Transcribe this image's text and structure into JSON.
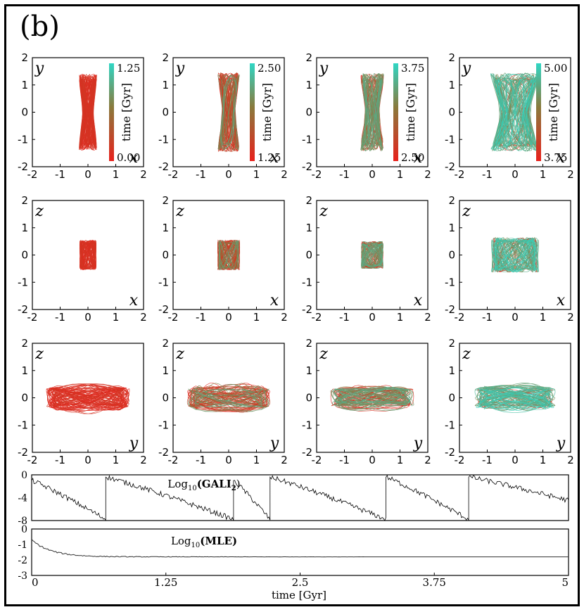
{
  "panel_label": "(b)",
  "colors": {
    "early": "#e8211c",
    "mid": "#8a7a3c",
    "late": "#2fd6c4"
  },
  "chart_data": {
    "type": "orbit-projections-grid",
    "axis_range": [
      -2,
      2
    ],
    "axis_ticks": [
      "-2",
      "-1",
      "0",
      "1",
      "2"
    ],
    "time_units": "Gyr",
    "colorbar_label": "time [Gyr]",
    "columns": [
      {
        "t_start": "0.00",
        "t_end": "1.25",
        "late_frac": 0.0
      },
      {
        "t_start": "1.25",
        "t_end": "2.50",
        "late_frac": 0.25
      },
      {
        "t_start": "2.50",
        "t_end": "3.75",
        "late_frac": 0.55
      },
      {
        "t_start": "3.75",
        "t_end": "5.00",
        "late_frac": 0.85
      }
    ],
    "rows": [
      {
        "projection": "x-y",
        "horizontal": "x",
        "vertical": "y",
        "extent_h": [
          0.35,
          0.4,
          0.45,
          0.9
        ],
        "extent_v": [
          1.4,
          1.45,
          1.45,
          1.45
        ]
      },
      {
        "projection": "x-z",
        "horizontal": "x",
        "vertical": "z",
        "extent_h": [
          0.3,
          0.4,
          0.4,
          0.85
        ],
        "extent_v": [
          0.55,
          0.55,
          0.5,
          0.65
        ]
      },
      {
        "projection": "y-z",
        "horizontal": "y",
        "vertical": "z",
        "extent_h": [
          1.5,
          1.5,
          1.5,
          1.45
        ],
        "extent_v": [
          0.55,
          0.5,
          0.45,
          0.5
        ]
      }
    ],
    "gali2": {
      "title_prefix": "Log",
      "title_sub": "10",
      "title_arg": "(GALI",
      "title_arg_sub": "2",
      "title_close": ")",
      "ylim": [
        -8,
        0
      ],
      "yticks": [
        "0",
        "-4",
        "-8"
      ],
      "reset_times": [
        0.0,
        0.69,
        1.88,
        2.22,
        3.3,
        4.07,
        5.0
      ],
      "start_values": [
        -1.0,
        -0.4,
        -1.0,
        -0.4,
        -0.4,
        -0.4
      ],
      "end_values": [
        -7.8,
        -7.8,
        -7.8,
        -7.8,
        -7.8,
        -4.5
      ]
    },
    "mle": {
      "title_prefix": "Log",
      "title_sub": "10",
      "title_arg": "(MLE)",
      "ylim": [
        -3,
        0
      ],
      "yticks": [
        "0",
        "-1",
        "-2",
        "-3"
      ],
      "start_value": -0.7,
      "plateau_value": -1.8,
      "xticks": [
        "0",
        "1.25",
        "2.5",
        "3.75",
        "5"
      ],
      "xtick_values": [
        0,
        1.25,
        2.5,
        3.75,
        5
      ],
      "xlabel": "time [Gyr]"
    }
  }
}
